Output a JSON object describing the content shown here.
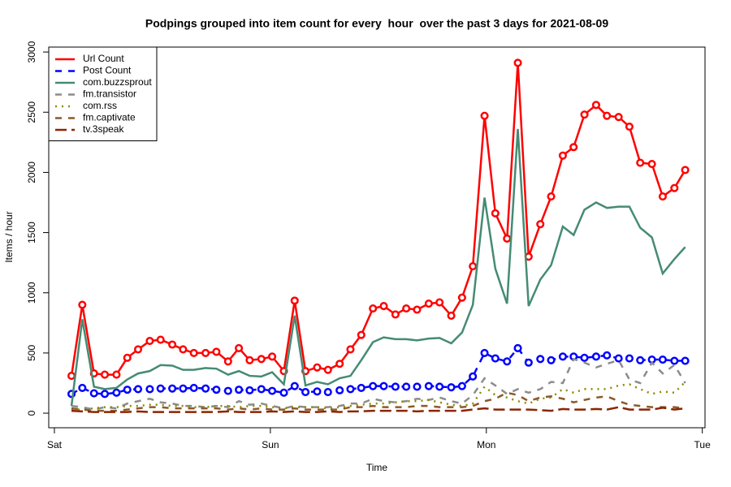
{
  "chart_data": {
    "type": "line",
    "title": "Podpings grouped into item count for every  hour  over the past 3 days for 2021-08-09",
    "x_label": "Time",
    "y_label": "Items / hour",
    "x": [
      1.9,
      3.1,
      4.4,
      5.6,
      6.9,
      8.1,
      9.3,
      10.6,
      11.8,
      13.1,
      14.3,
      15.5,
      16.8,
      18.0,
      19.3,
      20.5,
      21.7,
      23.0,
      24.2,
      25.5,
      26.7,
      27.9,
      29.2,
      30.4,
      31.7,
      32.9,
      34.1,
      35.4,
      36.6,
      37.9,
      39.1,
      40.3,
      41.6,
      42.8,
      44.1,
      45.3,
      46.5,
      47.8,
      49.0,
      50.3,
      51.5,
      52.7,
      54.0,
      55.2,
      56.5,
      57.7,
      58.9,
      60.2,
      61.4,
      62.7,
      63.9,
      65.1,
      66.4,
      67.6,
      68.9,
      70.1
    ],
    "xlim": [
      -0.63,
      72.3
    ],
    "xticks": [
      {
        "value": 0,
        "label": "Sat"
      },
      {
        "value": 24,
        "label": "Sun"
      },
      {
        "value": 48,
        "label": "Mon"
      },
      {
        "value": 72,
        "label": "Tue"
      }
    ],
    "ylim": [
      -121,
      3041
    ],
    "yticks": [
      0,
      500,
      1000,
      1500,
      2000,
      2500,
      3000
    ],
    "legend": "topleft",
    "series": [
      {
        "name": "Url Count",
        "color": "#ff0000",
        "line_style": "solid",
        "markers": true,
        "values": [
          310,
          900,
          330,
          320,
          320,
          460,
          530,
          600,
          610,
          570,
          530,
          500,
          500,
          510,
          430,
          540,
          440,
          450,
          470,
          350,
          935,
          350,
          380,
          360,
          410,
          530,
          650,
          870,
          890,
          820,
          870,
          860,
          910,
          920,
          810,
          960,
          1220,
          2470,
          1660,
          1450,
          2910,
          1300,
          1570,
          1800,
          2140,
          2210,
          2480,
          2560,
          2470,
          2460,
          2380,
          2080,
          2070,
          1800,
          1870,
          2020
        ]
      },
      {
        "name": "Post Count",
        "color": "#0000ff",
        "line_style": "dashed",
        "markers": true,
        "values": [
          160,
          210,
          165,
          160,
          170,
          195,
          200,
          200,
          205,
          205,
          205,
          210,
          205,
          195,
          185,
          195,
          190,
          200,
          185,
          170,
          225,
          175,
          180,
          175,
          190,
          200,
          210,
          225,
          225,
          220,
          220,
          220,
          225,
          220,
          215,
          225,
          305,
          500,
          455,
          430,
          540,
          420,
          450,
          440,
          470,
          470,
          460,
          470,
          480,
          455,
          455,
          440,
          445,
          445,
          435,
          435
        ]
      },
      {
        "name": "com.buzzsprout",
        "color": "#458b74",
        "line_style": "solid",
        "markers": false,
        "values": [
          60,
          780,
          220,
          200,
          210,
          280,
          330,
          350,
          400,
          395,
          360,
          360,
          375,
          370,
          320,
          350,
          310,
          305,
          340,
          240,
          810,
          230,
          260,
          240,
          290,
          310,
          440,
          590,
          630,
          615,
          615,
          605,
          620,
          625,
          580,
          670,
          900,
          1790,
          1200,
          910,
          2360,
          890,
          1110,
          1230,
          1550,
          1480,
          1690,
          1750,
          1705,
          1715,
          1715,
          1540,
          1460,
          1160,
          1280,
          1380
        ]
      },
      {
        "name": "fm.transistor",
        "color": "#8c8c8c",
        "line_style": "dashed",
        "markers": false,
        "values": [
          60,
          50,
          30,
          50,
          40,
          80,
          100,
          120,
          90,
          80,
          60,
          60,
          50,
          60,
          50,
          100,
          70,
          80,
          60,
          40,
          60,
          50,
          50,
          50,
          60,
          80,
          80,
          120,
          100,
          90,
          100,
          120,
          110,
          130,
          100,
          80,
          150,
          290,
          230,
          160,
          200,
          170,
          200,
          260,
          250,
          450,
          420,
          380,
          410,
          440,
          280,
          250,
          420,
          330,
          400,
          250
        ]
      },
      {
        "name": "com.rss",
        "color": "#8b8b00",
        "line_style": "dotted",
        "markers": false,
        "values": [
          30,
          30,
          40,
          50,
          50,
          60,
          60,
          70,
          70,
          60,
          60,
          50,
          50,
          60,
          60,
          50,
          60,
          60,
          50,
          40,
          50,
          50,
          50,
          40,
          50,
          60,
          70,
          80,
          80,
          90,
          100,
          100,
          110,
          90,
          70,
          60,
          80,
          220,
          150,
          130,
          100,
          80,
          120,
          130,
          200,
          170,
          200,
          200,
          200,
          230,
          240,
          200,
          160,
          180,
          170,
          260
        ]
      },
      {
        "name": "fm.captivate",
        "color": "#8b5a2b",
        "line_style": "dashed",
        "markers": false,
        "values": [
          40,
          30,
          20,
          20,
          20,
          30,
          40,
          50,
          50,
          40,
          40,
          40,
          40,
          40,
          30,
          40,
          30,
          40,
          30,
          30,
          40,
          30,
          30,
          30,
          30,
          50,
          50,
          60,
          50,
          50,
          50,
          60,
          60,
          50,
          50,
          50,
          60,
          100,
          120,
          170,
          150,
          100,
          130,
          140,
          120,
          90,
          110,
          130,
          140,
          100,
          70,
          60,
          50,
          50,
          50,
          40
        ]
      },
      {
        "name": "tv.3speak",
        "color": "#8b2500",
        "line_style": "longdash",
        "markers": false,
        "values": [
          20,
          15,
          10,
          10,
          10,
          10,
          15,
          10,
          10,
          10,
          10,
          10,
          10,
          10,
          15,
          10,
          10,
          10,
          15,
          10,
          15,
          10,
          10,
          15,
          10,
          15,
          15,
          20,
          20,
          20,
          20,
          15,
          20,
          20,
          20,
          20,
          30,
          40,
          30,
          30,
          30,
          30,
          25,
          20,
          35,
          30,
          30,
          35,
          30,
          50,
          30,
          30,
          30,
          45,
          30,
          40
        ]
      }
    ]
  }
}
